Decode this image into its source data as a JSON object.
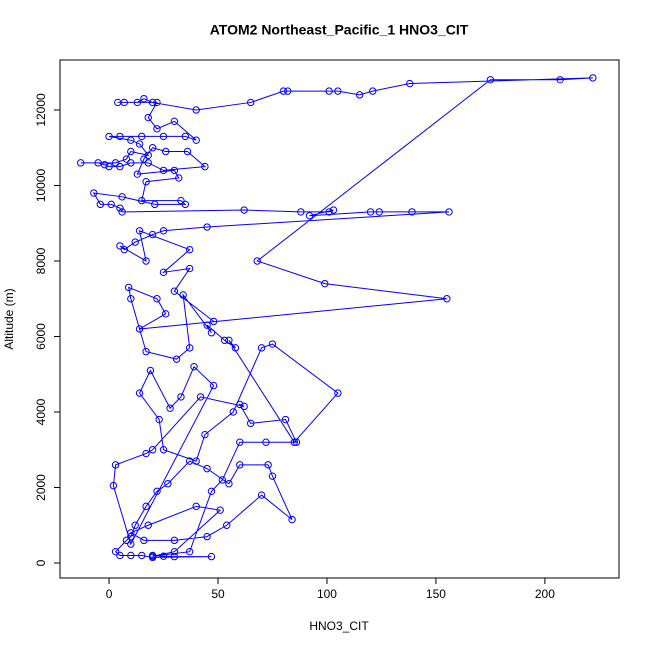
{
  "chart_data": {
    "type": "line",
    "markers": "circle",
    "title": "ATOM2 Northeast_Pacific_1 HNO3_CIT",
    "x_label": "HNO3_CIT",
    "y_label": "Altitude (m)",
    "color": "#0000ff",
    "xlim": [
      -22.5,
      234
    ],
    "ylim": [
      -397,
      13324
    ],
    "xticks": [
      0,
      50,
      100,
      150,
      200
    ],
    "yticks": [
      0,
      2000,
      4000,
      6000,
      8000,
      10000,
      12000
    ],
    "x": [
      20,
      25,
      30,
      47,
      20,
      15,
      10,
      5,
      3,
      8,
      10,
      12,
      17,
      22,
      27,
      37,
      45,
      55,
      60,
      73,
      75,
      84,
      70,
      54,
      45,
      30,
      16,
      10,
      18,
      40,
      51,
      30,
      20,
      37,
      47,
      52,
      60,
      72,
      86,
      81,
      65,
      60,
      62,
      42,
      20,
      17,
      3,
      2,
      10,
      48,
      39,
      33,
      28,
      19,
      14,
      23,
      25,
      40,
      44,
      57,
      70,
      75,
      105,
      85,
      55,
      58,
      53,
      45,
      47,
      34,
      37,
      31,
      17,
      10,
      9,
      22,
      26,
      14,
      155,
      99,
      68,
      175,
      207,
      222,
      138,
      121,
      115,
      105,
      101,
      82,
      80,
      65,
      40,
      20,
      16,
      13,
      7,
      4,
      22,
      18,
      22,
      30,
      40,
      35,
      25,
      15,
      5,
      0,
      10,
      14,
      18,
      10,
      8,
      3,
      -13,
      -5,
      -2,
      0,
      5,
      10,
      18,
      25,
      44,
      36,
      26,
      20,
      16,
      13,
      30,
      32,
      17,
      15,
      33,
      35,
      21,
      6,
      -7,
      -4,
      1,
      5,
      6,
      62,
      88,
      101,
      103,
      92,
      120,
      124,
      139,
      156,
      45,
      25,
      20,
      12,
      7,
      5,
      17,
      14,
      37,
      25,
      37,
      30,
      48
    ],
    "values": [
      200,
      180,
      170,
      170,
      150,
      200,
      200,
      200,
      300,
      600,
      700,
      1000,
      1500,
      1900,
      2100,
      2700,
      2500,
      2100,
      2600,
      2600,
      2300,
      1150,
      1800,
      1000,
      700,
      600,
      600,
      800,
      1000,
      1500,
      1400,
      300,
      180,
      300,
      1900,
      2200,
      3200,
      3200,
      3200,
      3800,
      3700,
      4200,
      4150,
      4400,
      3000,
      2900,
      2600,
      2050,
      500,
      4700,
      5200,
      4400,
      4100,
      5100,
      4500,
      3800,
      3000,
      2700,
      3400,
      4000,
      5700,
      5800,
      4500,
      3200,
      5900,
      5700,
      5900,
      6300,
      6100,
      7100,
      5700,
      5400,
      5600,
      7000,
      7300,
      7000,
      6600,
      6200,
      7000,
      7400,
      8000,
      12800,
      12800,
      12850,
      12700,
      12500,
      12400,
      12500,
      12500,
      12500,
      12500,
      12200,
      12000,
      12200,
      12300,
      12200,
      12200,
      12200,
      12200,
      11800,
      11500,
      11700,
      11200,
      11300,
      11300,
      11300,
      11300,
      11300,
      11200,
      11100,
      10800,
      10900,
      10700,
      10600,
      10600,
      10600,
      10550,
      10500,
      10500,
      10600,
      10600,
      10400,
      10500,
      10900,
      10900,
      11000,
      10700,
      10300,
      10400,
      10200,
      10100,
      9600,
      9600,
      9500,
      9500,
      9700,
      9800,
      9500,
      9500,
      9400,
      9300,
      9350,
      9300,
      9300,
      9350,
      9200,
      9300,
      9300,
      9300,
      9300,
      8900,
      8800,
      8700,
      8500,
      8300,
      8400,
      8000,
      8800,
      8300,
      7700,
      7800,
      7200,
      6400
    ]
  }
}
